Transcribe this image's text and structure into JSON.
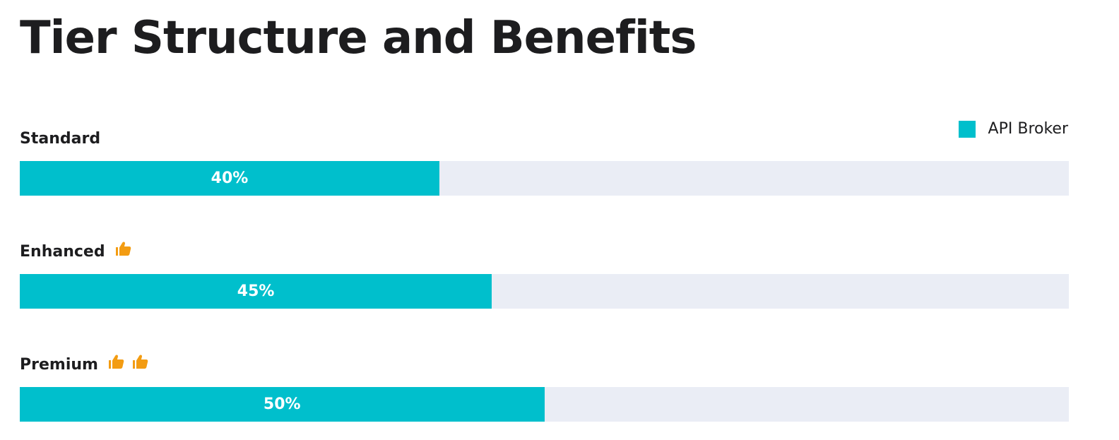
{
  "page": {
    "title": "Tier Structure and Benefits"
  },
  "legend": {
    "label": "API Broker",
    "color": "#00bfcc"
  },
  "chart_data": {
    "type": "bar",
    "orientation": "horizontal",
    "title": "Tier Structure and Benefits",
    "categories": [
      "Standard",
      "Enhanced",
      "Premium"
    ],
    "series": [
      {
        "name": "API Broker",
        "values": [
          40,
          45,
          50
        ],
        "labels": [
          "40%",
          "45%",
          "50%"
        ],
        "color": "#00bfcc"
      }
    ],
    "thumbs_up": [
      0,
      1,
      2
    ],
    "xlim": [
      0,
      100
    ],
    "track_color": "#eaedf5",
    "icon_color": "#f39c12",
    "legend_position": "top-right",
    "grid": false
  }
}
